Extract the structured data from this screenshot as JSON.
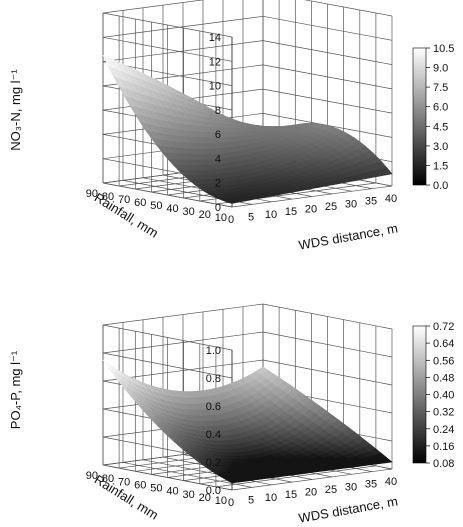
{
  "chart_data": [
    {
      "type": "surface",
      "zlabel": "NO₃-N, mg l⁻¹",
      "xlabel": "WDS distance, m",
      "ylabel": "Rainfall, mm",
      "x_ticks": [
        "0",
        "5",
        "10",
        "15",
        "20",
        "25",
        "30",
        "35",
        "40"
      ],
      "y_ticks": [
        "10",
        "20",
        "30",
        "40",
        "50",
        "60",
        "70",
        "80",
        "90"
      ],
      "z_ticks": [
        "0",
        "2",
        "4",
        "6",
        "8",
        "10",
        "12",
        "14"
      ],
      "zlim": [
        0,
        14
      ],
      "colorbar_ticks": [
        "0.0",
        "1.5",
        "3.0",
        "4.5",
        "6.0",
        "7.5",
        "9.0",
        "10.5"
      ],
      "colorbar_range": [
        0,
        10.5
      ],
      "corners": {
        "x0_y10": 0.3,
        "x0_y90": 10.5,
        "x40_y10": 1.0,
        "x40_y90": 1.8,
        "x20_y90": 6.5,
        "x40_y50": 4.0,
        "x20_y50": 2.3,
        "x0_y50": 3.0
      }
    },
    {
      "type": "surface",
      "zlabel": "PO₄-P, mg l⁻¹",
      "xlabel": "WDS distance, m",
      "ylabel": "Rainfall, mm",
      "x_ticks": [
        "0",
        "5",
        "10",
        "15",
        "20",
        "25",
        "30",
        "35",
        "40"
      ],
      "y_ticks": [
        "10",
        "20",
        "30",
        "40",
        "50",
        "60",
        "70",
        "80",
        "90"
      ],
      "z_ticks": [
        "0.0",
        "0.2",
        "0.4",
        "0.6",
        "0.8",
        "1.0"
      ],
      "zlim": [
        0,
        1.0
      ],
      "colorbar_ticks": [
        "0.08",
        "0.16",
        "0.24",
        "0.32",
        "0.40",
        "0.48",
        "0.56",
        "0.64",
        "0.72"
      ],
      "colorbar_range": [
        0.08,
        0.72
      ],
      "corners": {
        "x0_y10": 0.05,
        "x0_y90": 0.75,
        "x40_y10": 0.05,
        "x40_y90": 0.55,
        "x20_y90": 0.45,
        "x40_y50": 0.32,
        "x20_y50": 0.18,
        "x0_y50": 0.3
      }
    }
  ]
}
